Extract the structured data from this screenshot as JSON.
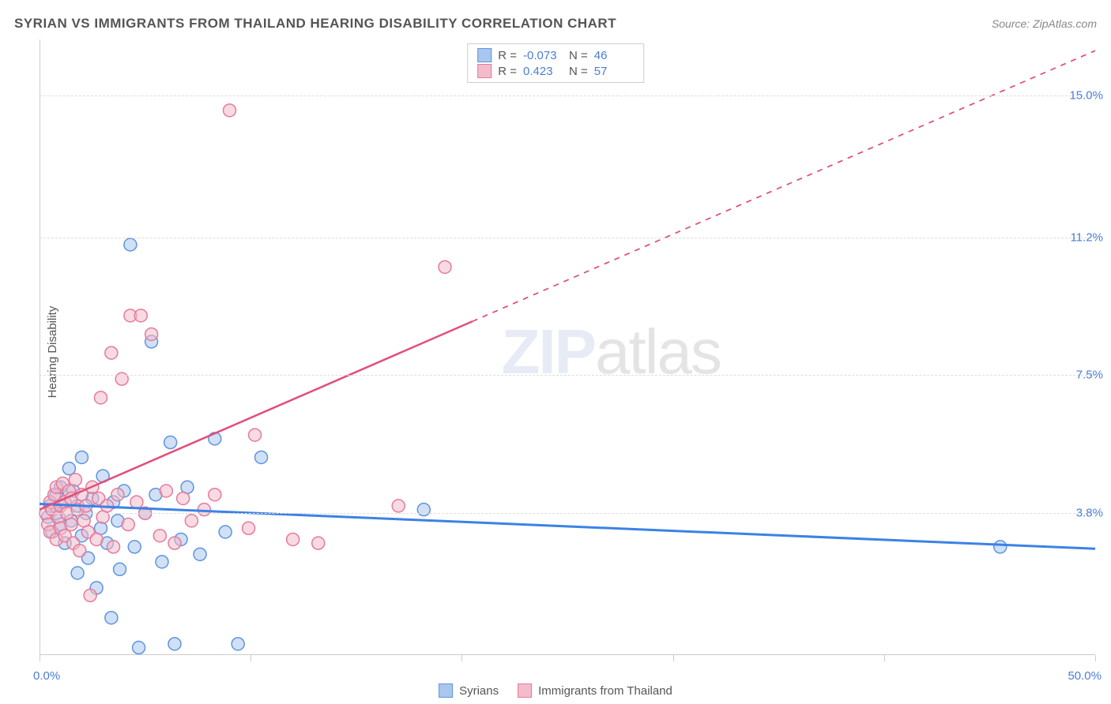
{
  "title": "SYRIAN VS IMMIGRANTS FROM THAILAND HEARING DISABILITY CORRELATION CHART",
  "source": "Source: ZipAtlas.com",
  "ylabel": "Hearing Disability",
  "watermark_part1": "ZIP",
  "watermark_part2": "atlas",
  "chart": {
    "type": "scatter",
    "xlim": [
      0,
      50
    ],
    "ylim": [
      0,
      16.5
    ],
    "x_ticks": [
      0,
      10,
      20,
      30,
      40,
      50
    ],
    "x_tick_labels_shown": {
      "min": "0.0%",
      "max": "50.0%"
    },
    "y_gridlines": [
      3.8,
      7.5,
      11.2,
      15.0
    ],
    "y_tick_labels": [
      "3.8%",
      "7.5%",
      "11.2%",
      "15.0%"
    ],
    "grid_color": "#dddddd",
    "axis_color": "#cccccc",
    "background_color": "#ffffff",
    "label_color": "#4a7dd6",
    "text_color": "#555555",
    "marker_radius": 8,
    "marker_stroke_width": 1.5,
    "series": [
      {
        "name": "Syrians",
        "fill": "#a9c6ee",
        "stroke": "#5e94de",
        "fill_opacity": 0.55,
        "R": "-0.073",
        "N": "46",
        "trend": {
          "x1": 0,
          "y1": 4.05,
          "x2": 50,
          "y2": 2.85,
          "dashed_from_x": null,
          "stroke": "#3b82e6",
          "width": 3
        },
        "points": [
          [
            0.4,
            3.7
          ],
          [
            0.5,
            4.0
          ],
          [
            0.6,
            3.3
          ],
          [
            0.8,
            3.8
          ],
          [
            0.8,
            4.3
          ],
          [
            1.0,
            3.5
          ],
          [
            1.0,
            4.5
          ],
          [
            1.2,
            3.0
          ],
          [
            1.2,
            4.1
          ],
          [
            1.4,
            5.0
          ],
          [
            1.5,
            3.6
          ],
          [
            1.6,
            4.4
          ],
          [
            1.8,
            2.2
          ],
          [
            1.8,
            4.0
          ],
          [
            2.0,
            3.2
          ],
          [
            2.0,
            5.3
          ],
          [
            2.2,
            3.8
          ],
          [
            2.3,
            2.6
          ],
          [
            2.5,
            4.2
          ],
          [
            2.7,
            1.8
          ],
          [
            2.9,
            3.4
          ],
          [
            3.0,
            4.8
          ],
          [
            3.2,
            3.0
          ],
          [
            3.4,
            1.0
          ],
          [
            3.5,
            4.1
          ],
          [
            3.7,
            3.6
          ],
          [
            3.8,
            2.3
          ],
          [
            4.0,
            4.4
          ],
          [
            4.3,
            11.0
          ],
          [
            4.5,
            2.9
          ],
          [
            4.7,
            0.2
          ],
          [
            5.0,
            3.8
          ],
          [
            5.3,
            8.4
          ],
          [
            5.5,
            4.3
          ],
          [
            5.8,
            2.5
          ],
          [
            6.2,
            5.7
          ],
          [
            6.4,
            0.3
          ],
          [
            6.7,
            3.1
          ],
          [
            7.0,
            4.5
          ],
          [
            7.6,
            2.7
          ],
          [
            8.3,
            5.8
          ],
          [
            8.8,
            3.3
          ],
          [
            9.4,
            0.3
          ],
          [
            10.5,
            5.3
          ],
          [
            18.2,
            3.9
          ],
          [
            45.5,
            2.9
          ]
        ]
      },
      {
        "name": "Immigrants from Thailand",
        "fill": "#f3bccb",
        "stroke": "#e67a9a",
        "fill_opacity": 0.55,
        "R": "0.423",
        "N": "57",
        "trend": {
          "x1": 0,
          "y1": 3.9,
          "x2": 50,
          "y2": 16.2,
          "dashed_from_x": 20.5,
          "stroke": "#e34d7a",
          "width": 2.5
        },
        "points": [
          [
            0.3,
            3.8
          ],
          [
            0.4,
            3.5
          ],
          [
            0.5,
            4.1
          ],
          [
            0.5,
            3.3
          ],
          [
            0.6,
            3.9
          ],
          [
            0.7,
            4.3
          ],
          [
            0.8,
            3.1
          ],
          [
            0.8,
            4.5
          ],
          [
            0.9,
            3.7
          ],
          [
            1.0,
            4.0
          ],
          [
            1.0,
            3.4
          ],
          [
            1.1,
            4.6
          ],
          [
            1.2,
            3.2
          ],
          [
            1.2,
            4.1
          ],
          [
            1.3,
            3.8
          ],
          [
            1.4,
            4.4
          ],
          [
            1.5,
            3.5
          ],
          [
            1.5,
            4.2
          ],
          [
            1.6,
            3.0
          ],
          [
            1.7,
            4.7
          ],
          [
            1.8,
            3.9
          ],
          [
            1.9,
            2.8
          ],
          [
            2.0,
            4.3
          ],
          [
            2.1,
            3.6
          ],
          [
            2.2,
            4.0
          ],
          [
            2.3,
            3.3
          ],
          [
            2.4,
            1.6
          ],
          [
            2.5,
            4.5
          ],
          [
            2.7,
            3.1
          ],
          [
            2.8,
            4.2
          ],
          [
            2.9,
            6.9
          ],
          [
            3.0,
            3.7
          ],
          [
            3.2,
            4.0
          ],
          [
            3.4,
            8.1
          ],
          [
            3.5,
            2.9
          ],
          [
            3.7,
            4.3
          ],
          [
            3.9,
            7.4
          ],
          [
            4.2,
            3.5
          ],
          [
            4.3,
            9.1
          ],
          [
            4.6,
            4.1
          ],
          [
            4.8,
            9.1
          ],
          [
            5.0,
            3.8
          ],
          [
            5.3,
            8.6
          ],
          [
            5.7,
            3.2
          ],
          [
            6.0,
            4.4
          ],
          [
            6.4,
            3.0
          ],
          [
            6.8,
            4.2
          ],
          [
            7.2,
            3.6
          ],
          [
            7.8,
            3.9
          ],
          [
            8.3,
            4.3
          ],
          [
            9.0,
            14.6
          ],
          [
            9.9,
            3.4
          ],
          [
            10.2,
            5.9
          ],
          [
            12.0,
            3.1
          ],
          [
            13.2,
            3.0
          ],
          [
            17.0,
            4.0
          ],
          [
            19.2,
            10.4
          ]
        ]
      }
    ]
  },
  "legend_bottom": [
    {
      "label": "Syrians",
      "fill": "#a9c6ee",
      "stroke": "#5e94de"
    },
    {
      "label": "Immigrants from Thailand",
      "fill": "#f3bccb",
      "stroke": "#e67a9a"
    }
  ]
}
